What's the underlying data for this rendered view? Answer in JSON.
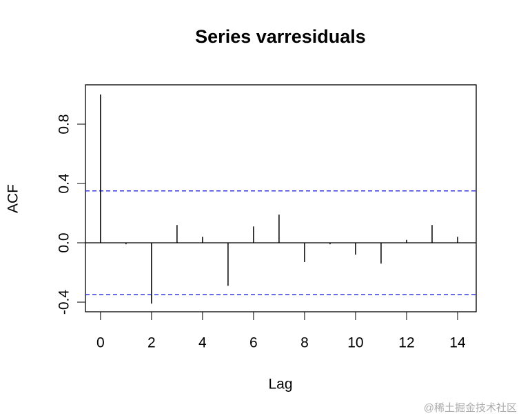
{
  "chart_data": {
    "type": "acf",
    "title": "Series  varresiduals",
    "x_label": "Lag",
    "y_label": "ACF",
    "x": [
      0,
      1,
      2,
      3,
      4,
      5,
      6,
      7,
      8,
      9,
      10,
      11,
      12,
      13,
      14
    ],
    "values": [
      1.0,
      -0.01,
      -0.41,
      0.12,
      0.04,
      -0.29,
      0.11,
      0.19,
      -0.13,
      -0.01,
      -0.08,
      -0.14,
      0.02,
      0.12,
      0.04
    ],
    "color": "#000000",
    "confidence_bounds": [
      0.35,
      -0.35
    ],
    "bound_color": "#3333dd",
    "xlim": [
      -0.59,
      14.73
    ],
    "ylim": [
      -0.465,
      1.065
    ],
    "xticks": [
      0,
      2,
      4,
      6,
      8,
      10,
      12,
      14
    ],
    "yticks": [
      {
        "value": -0.4,
        "label": "-0.4"
      },
      {
        "value": 0,
        "label": "0.0"
      },
      0.4,
      0.8
    ],
    "watermark": "@稀土掘金技术社区"
  }
}
